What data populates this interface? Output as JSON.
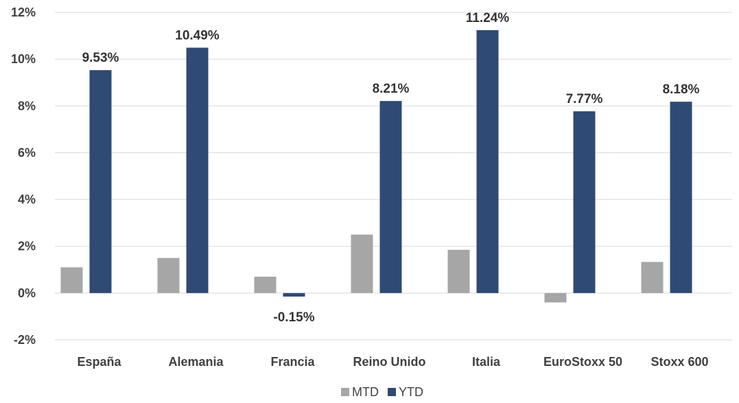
{
  "chart_data": {
    "type": "bar",
    "title": "",
    "xlabel": "",
    "ylabel": "",
    "categories": [
      "España",
      "Alemania",
      "Francia",
      "Reino Unido",
      "Italia",
      "EuroStoxx 50",
      "Stoxx 600"
    ],
    "series": [
      {
        "name": "MTD",
        "color": "#a6a6a6",
        "values": [
          1.1,
          1.5,
          0.7,
          2.5,
          1.85,
          -0.4,
          1.33
        ],
        "show_labels": false
      },
      {
        "name": "YTD",
        "color": "#2f4a75",
        "values": [
          9.53,
          10.49,
          -0.15,
          8.21,
          11.24,
          7.77,
          8.18
        ],
        "labels": [
          "9.53%",
          "10.49%",
          "-0.15%",
          "8.21%",
          "11.24%",
          "7.77%",
          "8.18%"
        ],
        "show_labels": true
      }
    ],
    "ylim": [
      -2,
      12
    ],
    "yticks": [
      -2,
      0,
      2,
      4,
      6,
      8,
      10,
      12
    ],
    "ytick_labels": [
      "-2%",
      "0%",
      "2%",
      "4%",
      "6%",
      "8%",
      "10%",
      "12%"
    ],
    "grid": true,
    "legend_position": "bottom"
  }
}
